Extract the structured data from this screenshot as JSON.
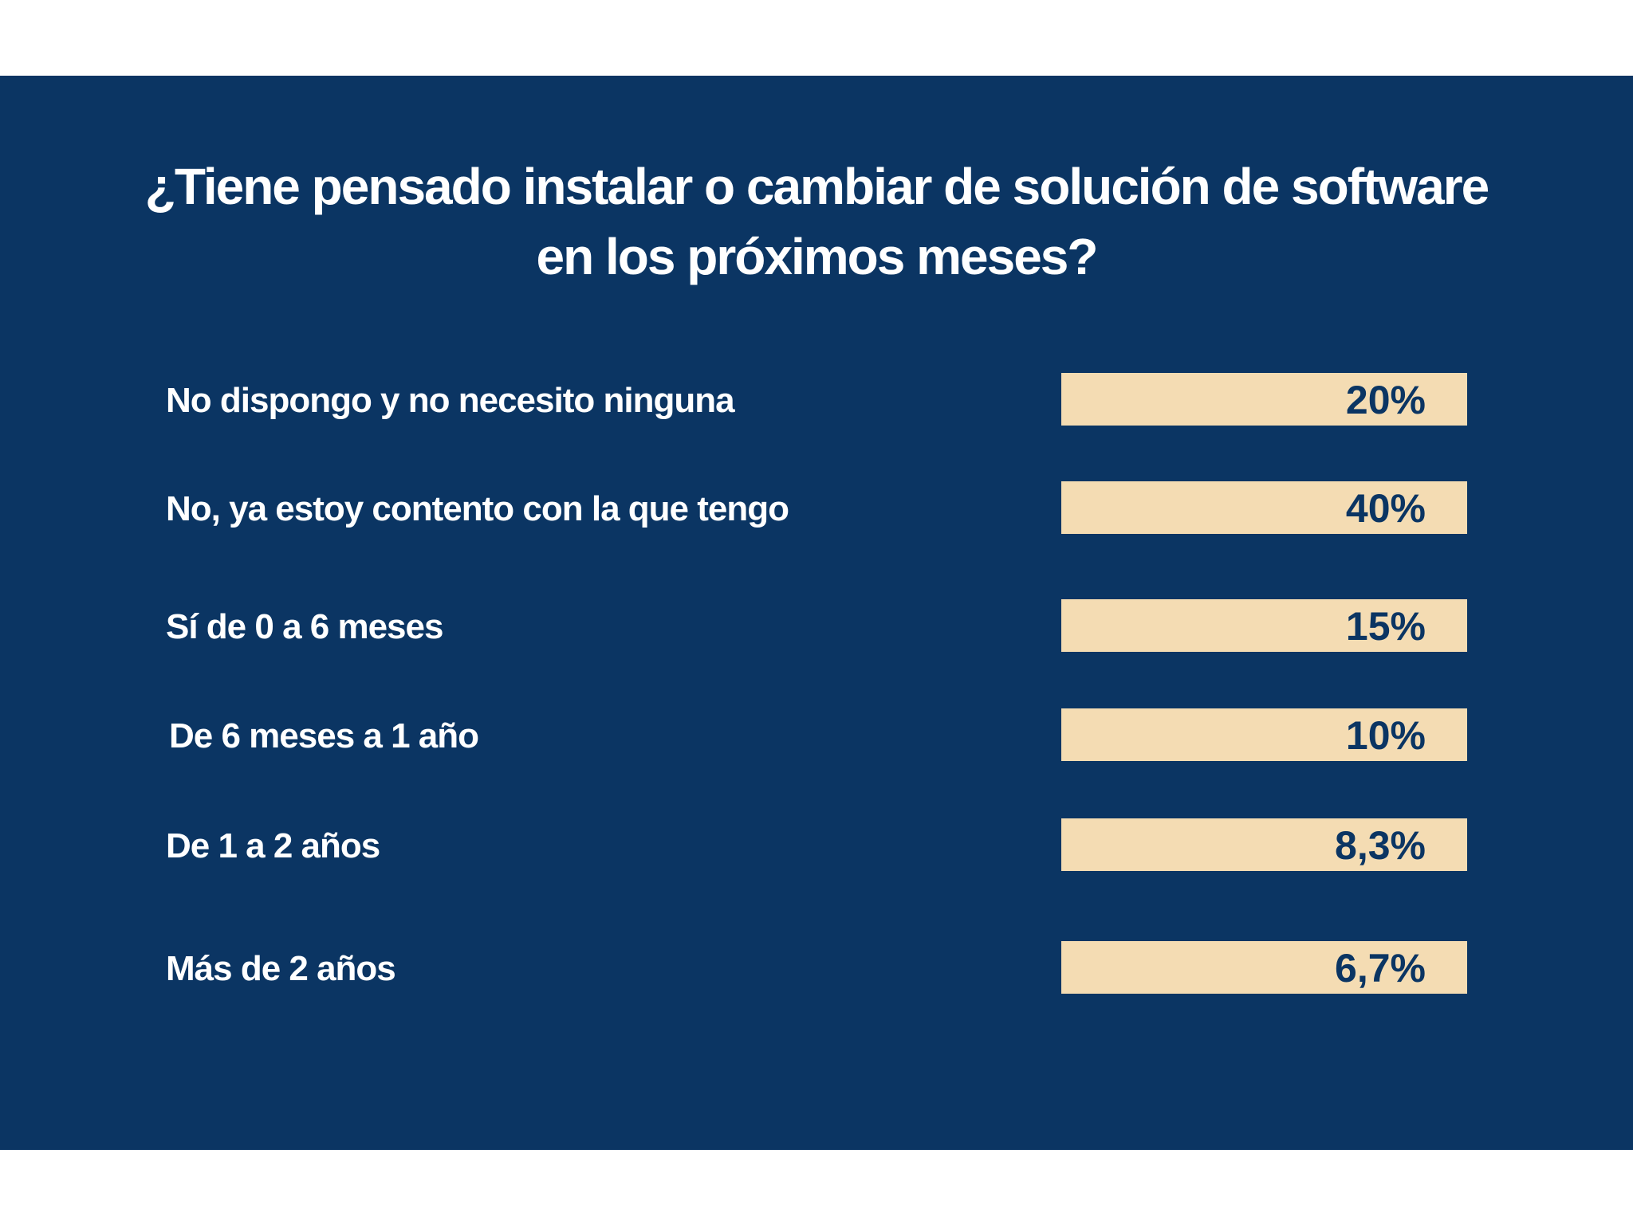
{
  "title": {
    "line1": "¿Tiene pensado instalar o cambiar de solución de software",
    "line2": "en los próximos meses?"
  },
  "colors": {
    "background": "#0b3563",
    "bar": "#f4dcb3",
    "label_text": "#ffffff",
    "value_text": "#0b3563"
  },
  "chart_data": {
    "type": "table",
    "title": "¿Tiene pensado instalar o cambiar de solución de software en los próximos meses?",
    "categories": [
      "No dispongo y no necesito ninguna",
      "No, ya estoy contento con la que tengo",
      "Sí de 0 a 6 meses",
      "De 6 meses a 1 año",
      "De 1 a 2 años",
      "Más de 2 años"
    ],
    "values": [
      20,
      40,
      15,
      10,
      8.3,
      6.7
    ],
    "value_labels": [
      "20%",
      "40%",
      "15%",
      "10%",
      "8,3%",
      "6,7%"
    ],
    "unit": "%",
    "grid": false,
    "legend": "none"
  }
}
